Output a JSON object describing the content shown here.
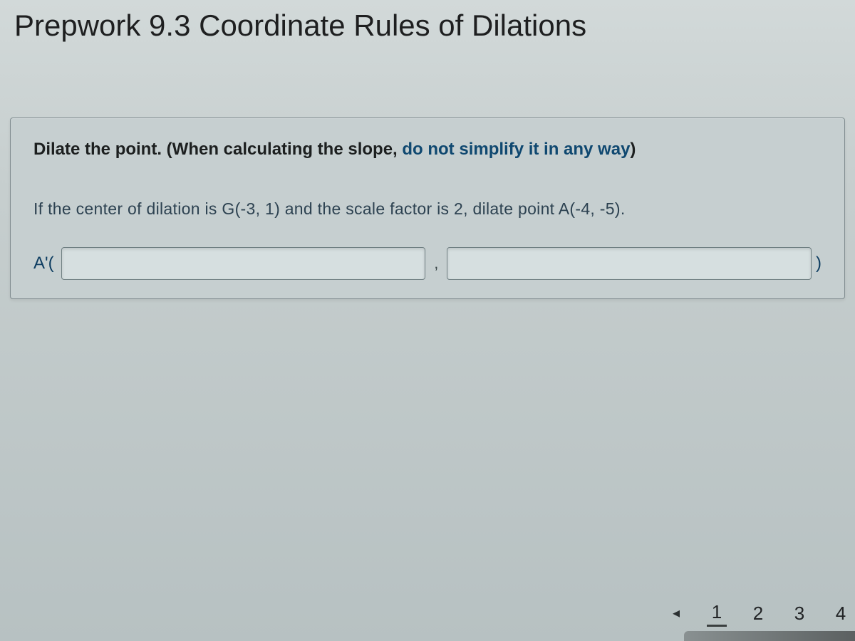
{
  "page": {
    "title": "Prepwork 9.3 Coordinate Rules of Dilations",
    "background_gradient": [
      "#d2d9d9",
      "#c6cece",
      "#b7c1c2"
    ],
    "title_color": "#1e1f20",
    "title_fontsize": 42
  },
  "card": {
    "border_color": "#7f8b8e",
    "background_color": "#c6cfd0",
    "instruction_prefix": "Dilate the point.  (When calculating the slope, ",
    "instruction_emphasis": "do not simplify it in any way",
    "instruction_suffix": ")",
    "instruction_prefix_color": "#1c1f1f",
    "instruction_link_color": "#0f4870",
    "instruction_fontsize": 24,
    "problem_text": "If the center of dilation is G(-3, 1) and the scale factor is 2, dilate point A(-4, -5).",
    "problem_color": "#2d4251",
    "problem_fontsize": 23
  },
  "answer": {
    "label": "A'(",
    "close": ")",
    "separator": ",",
    "x_value": "",
    "y_value": "",
    "label_color": "#0d3d61",
    "input_bg": "#d6dfe0",
    "input_border": "#6f7f82"
  },
  "pager": {
    "prev_symbol": "◂",
    "pages": [
      "1",
      "2",
      "3",
      "4"
    ],
    "active_index": 0,
    "text_color": "#222426",
    "active_underline": "#3a3f3f"
  }
}
